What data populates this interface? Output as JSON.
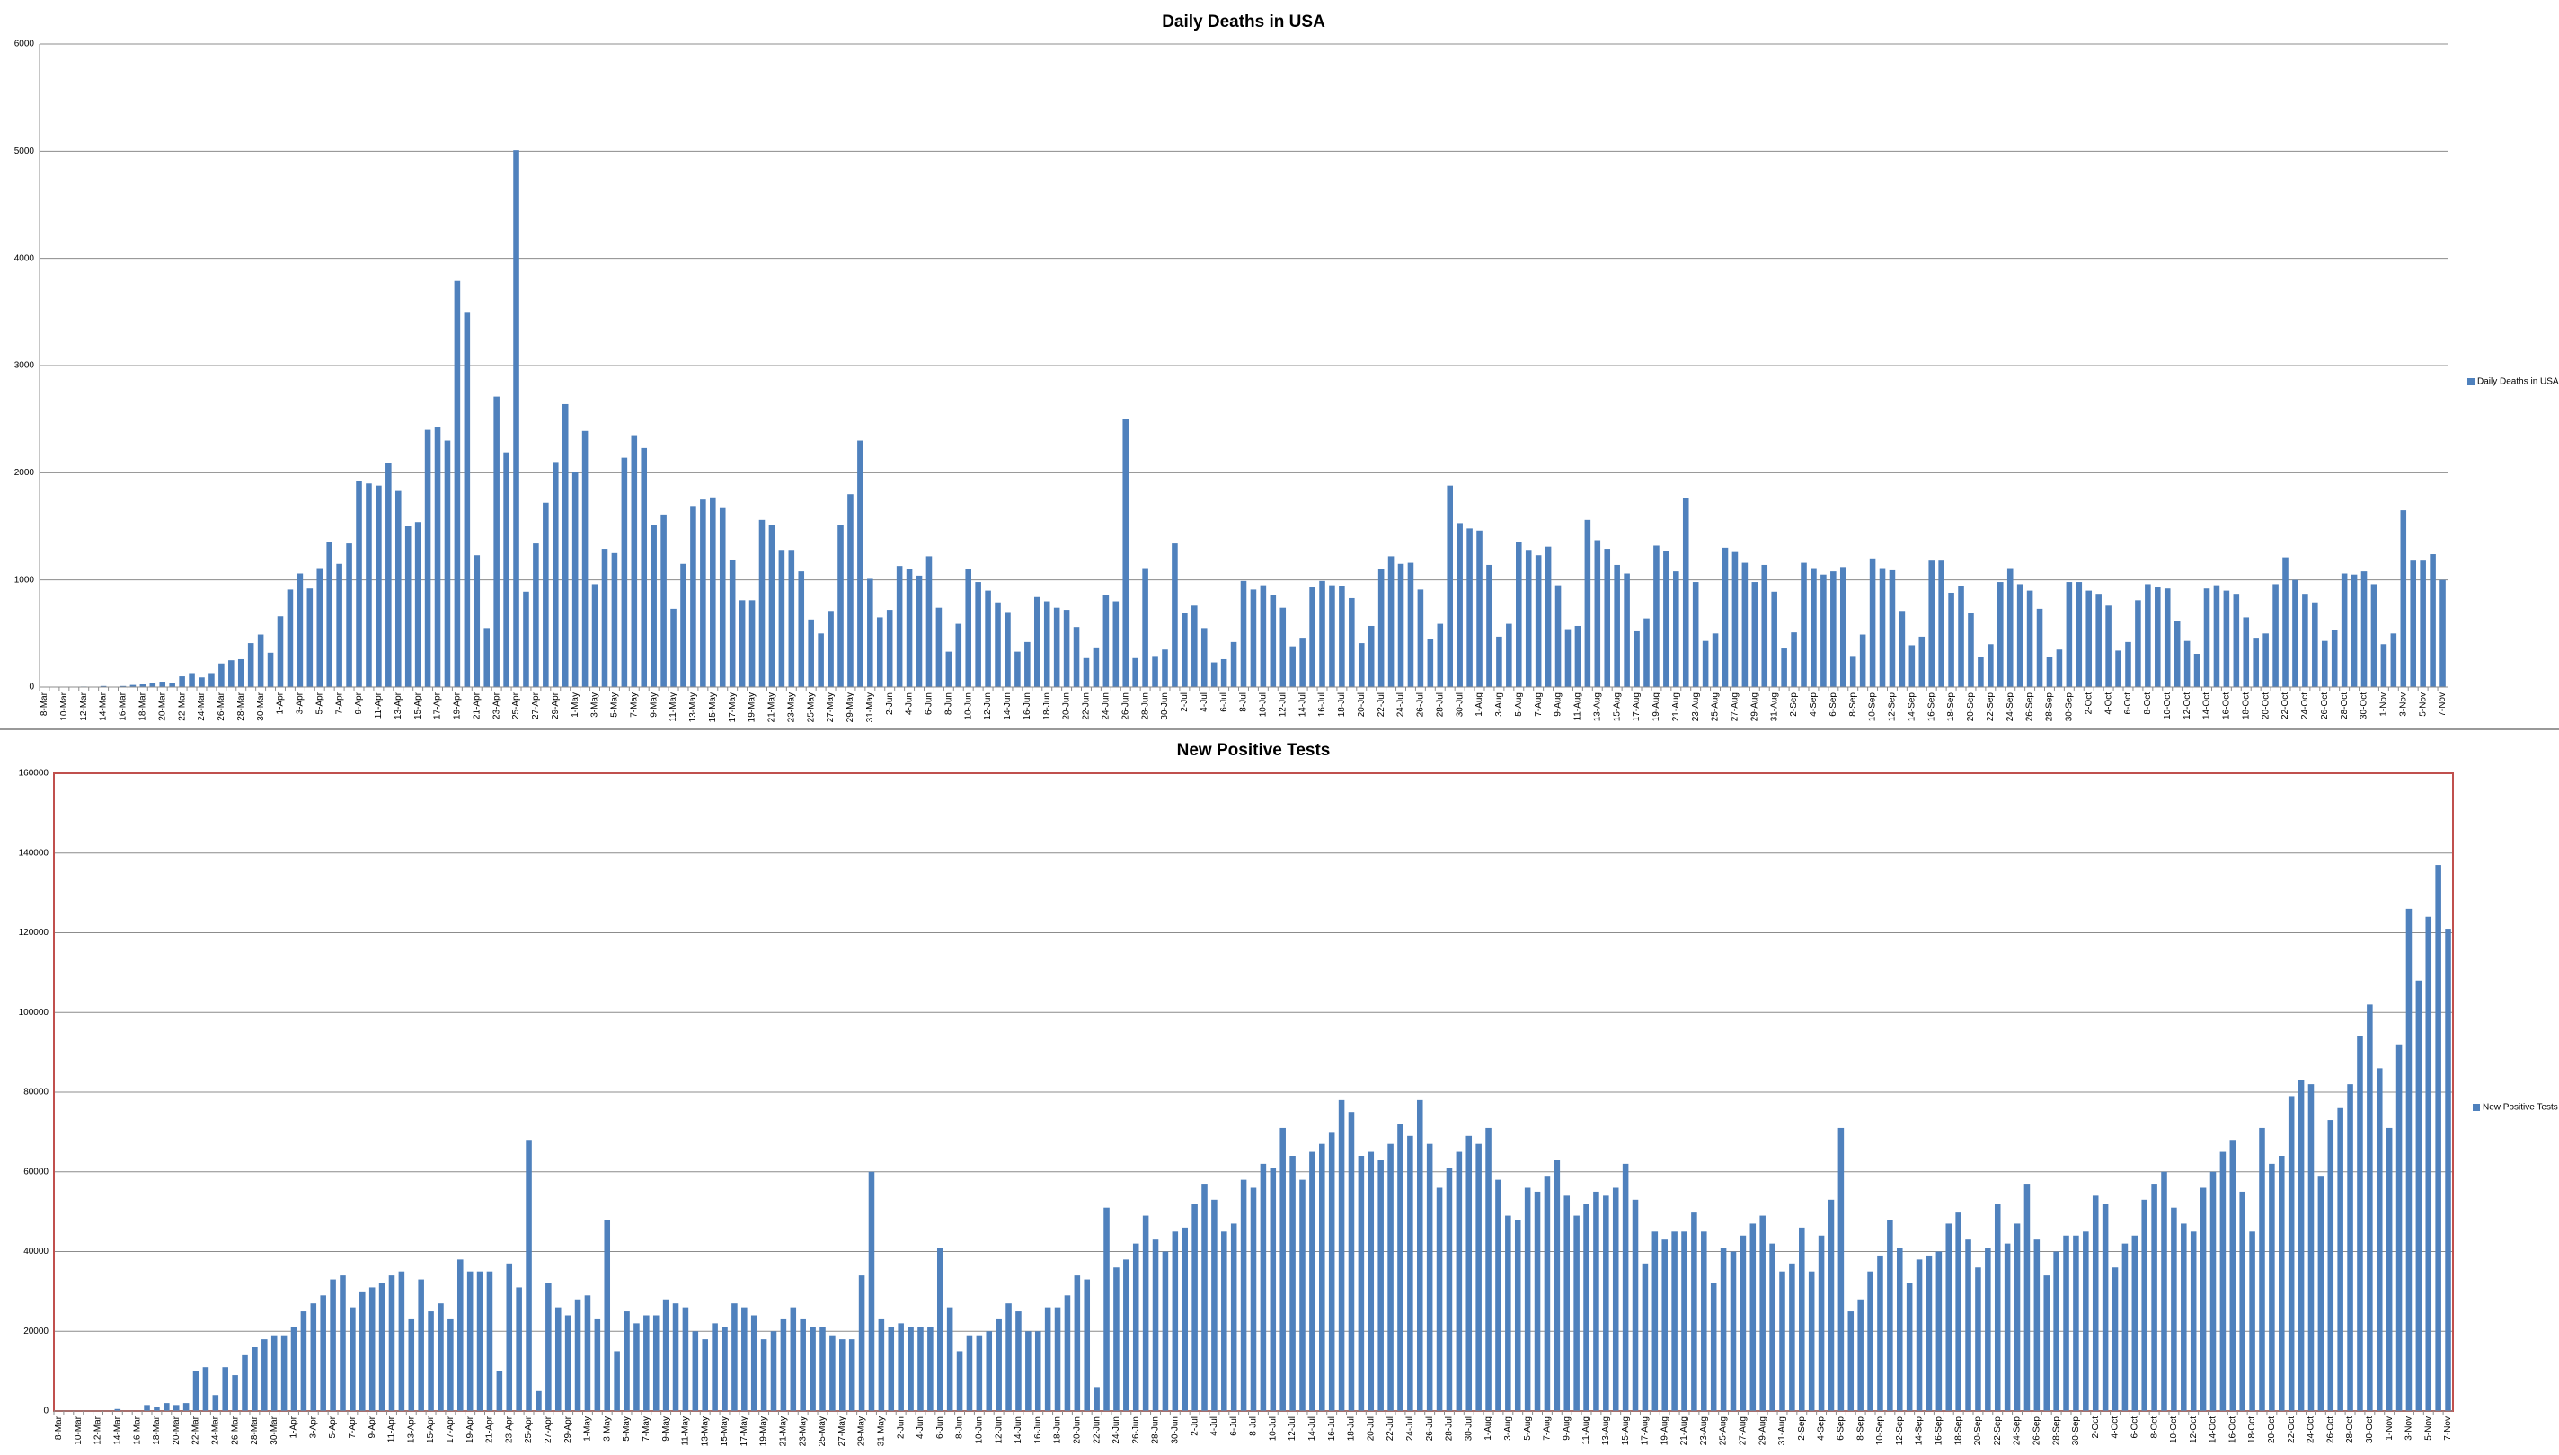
{
  "chart_data": [
    {
      "type": "bar",
      "title": "Daily Deaths in USA",
      "categories": [
        "8-Mar",
        null,
        "10-Mar",
        null,
        "12-Mar",
        null,
        "14-Mar",
        null,
        "16-Mar",
        null,
        "18-Mar",
        null,
        "20-Mar",
        null,
        "22-Mar",
        null,
        "24-Mar",
        null,
        "26-Mar",
        null,
        "28-Mar",
        null,
        "30-Mar",
        null,
        "1-Apr",
        null,
        "3-Apr",
        null,
        "5-Apr",
        null,
        "7-Apr",
        null,
        "9-Apr",
        null,
        "11-Apr",
        null,
        "13-Apr",
        null,
        "15-Apr",
        null,
        "17-Apr",
        null,
        "19-Apr",
        null,
        "21-Apr",
        null,
        "23-Apr",
        null,
        "25-Apr",
        null,
        "27-Apr",
        null,
        "29-Apr",
        null,
        "1-May",
        null,
        "3-May",
        null,
        "5-May",
        null,
        "7-May",
        null,
        "9-May",
        null,
        "11-May",
        null,
        "13-May",
        null,
        "15-May",
        null,
        "17-May",
        null,
        "19-May",
        null,
        "21-May",
        null,
        "23-May",
        null,
        "25-May",
        null,
        "27-May",
        null,
        "29-May",
        null,
        "31-May",
        null,
        "2-Jun",
        null,
        "4-Jun",
        null,
        "6-Jun",
        null,
        "8-Jun",
        null,
        "10-Jun",
        null,
        "12-Jun",
        null,
        "14-Jun",
        null,
        "16-Jun",
        null,
        "18-Jun",
        null,
        "20-Jun",
        null,
        "22-Jun",
        null,
        "24-Jun",
        null,
        "26-Jun",
        null,
        "28-Jun",
        null,
        "30-Jun",
        null,
        "2-Jul",
        null,
        "4-Jul",
        null,
        "6-Jul",
        null,
        "8-Jul",
        null,
        "10-Jul",
        null,
        "12-Jul",
        null,
        "14-Jul",
        null,
        "16-Jul",
        null,
        "18-Jul",
        null,
        "20-Jul",
        null,
        "22-Jul",
        null,
        "24-Jul",
        null,
        "26-Jul",
        null,
        "28-Jul",
        null,
        "30-Jul",
        null,
        "1-Aug",
        null,
        "3-Aug",
        null,
        "5-Aug",
        null,
        "7-Aug",
        null,
        "9-Aug",
        null,
        "11-Aug",
        null,
        "13-Aug",
        null,
        "15-Aug",
        null,
        "17-Aug",
        null,
        "19-Aug",
        null,
        "21-Aug",
        null,
        "23-Aug",
        null,
        "25-Aug",
        null,
        "27-Aug",
        null,
        "29-Aug",
        null,
        "31-Aug",
        null,
        "2-Sep",
        null,
        "4-Sep",
        null,
        "6-Sep",
        null,
        "8-Sep",
        null,
        "10-Sep",
        null,
        "12-Sep",
        null,
        "14-Sep",
        null,
        "16-Sep",
        null,
        "18-Sep",
        null,
        "20-Sep",
        null,
        "22-Sep",
        null,
        "24-Sep",
        null,
        "26-Sep",
        null,
        "28-Sep",
        null,
        "30-Sep",
        null,
        "2-Oct",
        null,
        "4-Oct",
        null,
        "6-Oct",
        null,
        "8-Oct",
        null,
        "10-Oct",
        null,
        "12-Oct",
        null,
        "14-Oct",
        null,
        "16-Oct",
        null,
        "18-Oct",
        null,
        "20-Oct",
        null,
        "22-Oct",
        null,
        "24-Oct",
        null,
        "26-Oct",
        null,
        "28-Oct",
        null,
        "30-Oct",
        null,
        "1-Nov",
        null,
        "3-Nov",
        null,
        "5-Nov",
        null,
        "7-Nov"
      ],
      "series": [
        {
          "name": "Daily Deaths in USA",
          "color": "#4f81bd",
          "values": [
            0,
            0,
            0,
            0,
            5,
            0,
            10,
            0,
            10,
            20,
            25,
            40,
            50,
            40,
            100,
            130,
            90,
            130,
            220,
            250,
            260,
            410,
            490,
            320,
            660,
            910,
            1060,
            920,
            1110,
            1350,
            1150,
            1340,
            1920,
            1900,
            1880,
            2090,
            1830,
            1500,
            1540,
            2400,
            2430,
            2300,
            3790,
            3500,
            1230,
            550,
            2710,
            2190,
            5010,
            890,
            1340,
            1720,
            2100,
            2640,
            2010,
            2390,
            960,
            1290,
            1250,
            2140,
            2350,
            2230,
            1510,
            1610,
            730,
            1150,
            1690,
            1750,
            1770,
            1670,
            1190,
            810,
            810,
            1560,
            1510,
            1280,
            1280,
            1080,
            630,
            500,
            710,
            1510,
            1800,
            2300,
            1010,
            650,
            720,
            1130,
            1100,
            1040,
            1220,
            740,
            330,
            590,
            1100,
            980,
            900,
            790,
            700,
            330,
            420,
            840,
            800,
            740,
            720,
            560,
            270,
            370,
            860,
            800,
            2500,
            270,
            1110,
            290,
            350,
            1340,
            690,
            760,
            550,
            230,
            260,
            420,
            990,
            910,
            950,
            860,
            740,
            380,
            460,
            930,
            990,
            950,
            940,
            830,
            410,
            570,
            1100,
            1220,
            1150,
            1160,
            910,
            450,
            590,
            1880,
            1530,
            1480,
            1460,
            1140,
            470,
            590,
            1350,
            1280,
            1230,
            1310,
            950,
            540,
            570,
            1560,
            1370,
            1290,
            1140,
            1060,
            520,
            640,
            1320,
            1270,
            1080,
            1760,
            980,
            430,
            500,
            1300,
            1260,
            1160,
            980,
            1140,
            890,
            360,
            510,
            1160,
            1110,
            1050,
            1080,
            1120,
            290,
            490,
            1200,
            1110,
            1090,
            710,
            390,
            470,
            1180,
            1180,
            880,
            940,
            690,
            280,
            400,
            980,
            1110,
            960,
            900,
            730,
            280,
            350,
            980,
            980,
            900,
            870,
            760,
            340,
            420,
            810,
            960,
            930,
            920,
            620,
            430,
            310,
            920,
            950,
            900,
            870,
            650,
            460,
            500,
            960,
            1210,
            1000,
            870,
            790,
            430,
            530,
            1060,
            1050,
            1080,
            960,
            400,
            500,
            1650,
            1180,
            1180,
            1240,
            1000
          ]
        }
      ],
      "ylim": [
        0,
        6000
      ],
      "yticks": [
        0,
        1000,
        2000,
        3000,
        4000,
        5000,
        6000
      ],
      "grid": true,
      "legend": "right"
    },
    {
      "type": "bar",
      "title": "New Positive Tests",
      "categories": [
        "8-Mar",
        null,
        "10-Mar",
        null,
        "12-Mar",
        null,
        "14-Mar",
        null,
        "16-Mar",
        null,
        "18-Mar",
        null,
        "20-Mar",
        null,
        "22-Mar",
        null,
        "24-Mar",
        null,
        "26-Mar",
        null,
        "28-Mar",
        null,
        "30-Mar",
        null,
        "1-Apr",
        null,
        "3-Apr",
        null,
        "5-Apr",
        null,
        "7-Apr",
        null,
        "9-Apr",
        null,
        "11-Apr",
        null,
        "13-Apr",
        null,
        "15-Apr",
        null,
        "17-Apr",
        null,
        "19-Apr",
        null,
        "21-Apr",
        null,
        "23-Apr",
        null,
        "25-Apr",
        null,
        "27-Apr",
        null,
        "29-Apr",
        null,
        "1-May",
        null,
        "3-May",
        null,
        "5-May",
        null,
        "7-May",
        null,
        "9-May",
        null,
        "11-May",
        null,
        "13-May",
        null,
        "15-May",
        null,
        "17-May",
        null,
        "19-May",
        null,
        "21-May",
        null,
        "23-May",
        null,
        "25-May",
        null,
        "27-May",
        null,
        "29-May",
        null,
        "31-May",
        null,
        "2-Jun",
        null,
        "4-Jun",
        null,
        "6-Jun",
        null,
        "8-Jun",
        null,
        "10-Jun",
        null,
        "12-Jun",
        null,
        "14-Jun",
        null,
        "16-Jun",
        null,
        "18-Jun",
        null,
        "20-Jun",
        null,
        "22-Jun",
        null,
        "24-Jun",
        null,
        "26-Jun",
        null,
        "28-Jun",
        null,
        "30-Jun",
        null,
        "2-Jul",
        null,
        "4-Jul",
        null,
        "6-Jul",
        null,
        "8-Jul",
        null,
        "10-Jul",
        null,
        "12-Jul",
        null,
        "14-Jul",
        null,
        "16-Jul",
        null,
        "18-Jul",
        null,
        "20-Jul",
        null,
        "22-Jul",
        null,
        "24-Jul",
        null,
        "26-Jul",
        null,
        "28-Jul",
        null,
        "30-Jul",
        null,
        "1-Aug",
        null,
        "3-Aug",
        null,
        "5-Aug",
        null,
        "7-Aug",
        null,
        "9-Aug",
        null,
        "11-Aug",
        null,
        "13-Aug",
        null,
        "15-Aug",
        null,
        "17-Aug",
        null,
        "19-Aug",
        null,
        "21-Aug",
        null,
        "23-Aug",
        null,
        "25-Aug",
        null,
        "27-Aug",
        null,
        "29-Aug",
        null,
        "31-Aug",
        null,
        "2-Sep",
        null,
        "4-Sep",
        null,
        "6-Sep",
        null,
        "8-Sep",
        null,
        "10-Sep",
        null,
        "12-Sep",
        null,
        "14-Sep",
        null,
        "16-Sep",
        null,
        "18-Sep",
        null,
        "20-Sep",
        null,
        "22-Sep",
        null,
        "24-Sep",
        null,
        "26-Sep",
        null,
        "28-Sep",
        null,
        "30-Sep",
        null,
        "2-Oct",
        null,
        "4-Oct",
        null,
        "6-Oct",
        null,
        "8-Oct",
        null,
        "10-Oct",
        null,
        "12-Oct",
        null,
        "14-Oct",
        null,
        "16-Oct",
        null,
        "18-Oct",
        null,
        "20-Oct",
        null,
        "22-Oct",
        null,
        "24-Oct",
        null,
        "26-Oct",
        null,
        "28-Oct",
        null,
        "30-Oct",
        null,
        "1-Nov",
        null,
        "3-Nov",
        null,
        "5-Nov",
        null,
        "7-Nov"
      ],
      "series": [
        {
          "name": "New Positive Tests",
          "color": "#4f81bd",
          "values": [
            0,
            0,
            0,
            0,
            0,
            0,
            500,
            0,
            0,
            1500,
            1000,
            2000,
            1500,
            2000,
            10000,
            11000,
            4000,
            11000,
            9000,
            14000,
            16000,
            18000,
            19000,
            19000,
            21000,
            25000,
            27000,
            29000,
            33000,
            34000,
            26000,
            30000,
            31000,
            32000,
            34000,
            35000,
            23000,
            33000,
            25000,
            27000,
            23000,
            38000,
            35000,
            35000,
            35000,
            10000,
            37000,
            31000,
            68000,
            5000,
            32000,
            26000,
            24000,
            28000,
            29000,
            23000,
            48000,
            15000,
            25000,
            22000,
            24000,
            24000,
            28000,
            27000,
            26000,
            20000,
            18000,
            22000,
            21000,
            27000,
            26000,
            24000,
            18000,
            20000,
            23000,
            26000,
            23000,
            21000,
            21000,
            19000,
            18000,
            18000,
            34000,
            60000,
            23000,
            21000,
            22000,
            21000,
            21000,
            21000,
            41000,
            26000,
            15000,
            19000,
            19000,
            20000,
            23000,
            27000,
            25000,
            20000,
            20000,
            26000,
            26000,
            29000,
            34000,
            33000,
            6000,
            51000,
            36000,
            38000,
            42000,
            49000,
            43000,
            40000,
            45000,
            46000,
            52000,
            57000,
            53000,
            45000,
            47000,
            58000,
            56000,
            62000,
            61000,
            71000,
            64000,
            58000,
            65000,
            67000,
            70000,
            78000,
            75000,
            64000,
            65000,
            63000,
            67000,
            72000,
            69000,
            78000,
            67000,
            56000,
            61000,
            65000,
            69000,
            67000,
            71000,
            58000,
            49000,
            48000,
            56000,
            55000,
            59000,
            63000,
            54000,
            49000,
            52000,
            55000,
            54000,
            56000,
            62000,
            53000,
            37000,
            45000,
            43000,
            45000,
            45000,
            50000,
            45000,
            32000,
            41000,
            40000,
            44000,
            47000,
            49000,
            42000,
            35000,
            37000,
            46000,
            35000,
            44000,
            53000,
            71000,
            25000,
            28000,
            35000,
            39000,
            48000,
            41000,
            32000,
            38000,
            39000,
            40000,
            47000,
            50000,
            43000,
            36000,
            41000,
            52000,
            42000,
            47000,
            57000,
            43000,
            34000,
            40000,
            44000,
            44000,
            45000,
            54000,
            52000,
            36000,
            42000,
            44000,
            53000,
            57000,
            60000,
            51000,
            47000,
            45000,
            56000,
            60000,
            65000,
            68000,
            55000,
            45000,
            71000,
            62000,
            64000,
            79000,
            83000,
            82000,
            59000,
            73000,
            76000,
            82000,
            94000,
            102000,
            86000,
            71000,
            92000,
            126000,
            108000,
            124000,
            137000,
            121000
          ]
        }
      ],
      "ylim": [
        0,
        160000
      ],
      "yticks": [
        0,
        20000,
        40000,
        60000,
        80000,
        100000,
        120000,
        140000,
        160000
      ],
      "grid": true,
      "legend": "right",
      "plot_border_color": "#c0504d"
    }
  ]
}
